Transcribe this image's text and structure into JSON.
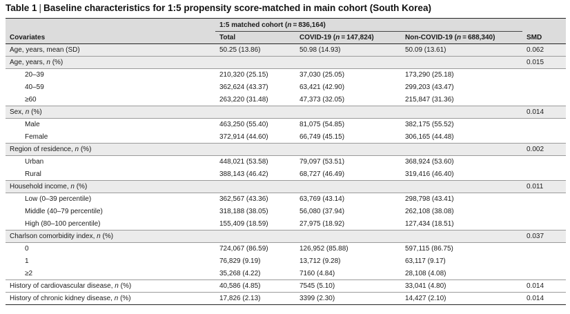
{
  "caption": {
    "label": "Table 1",
    "separator": "|",
    "text": "Baseline characteristics for 1:5 propensity score-matched in main cohort (South Korea)"
  },
  "spanner": {
    "prefix": "1:5 matched cohort (",
    "n_symbol": "n",
    "suffix": " = 836,164)"
  },
  "headers": {
    "covariates": "Covariates",
    "total": "Total",
    "covid_prefix": "COVID-19 (",
    "covid_n": "n",
    "covid_suffix": " = 147,824)",
    "noncovid_prefix": "Non-COVID-19 (",
    "noncovid_n": "n",
    "noncovid_suffix": " = 688,340)",
    "smd": "SMD"
  },
  "rows": {
    "age_mean": {
      "label": "Age, years, mean (SD)",
      "total": "50.25 (13.86)",
      "covid": "50.98 (14.93)",
      "noncovid": "50.09 (13.61)",
      "smd": "0.062"
    },
    "age_group": {
      "label_pre": "Age, years, ",
      "label_n": "n",
      "label_post": " (%)",
      "smd": "0.015"
    },
    "age_20_39": {
      "label": "20–39",
      "total": "210,320 (25.15)",
      "covid": "37,030 (25.05)",
      "noncovid": "173,290 (25.18)"
    },
    "age_40_59": {
      "label": "40–59",
      "total": "362,624 (43.37)",
      "covid": "63,421 (42.90)",
      "noncovid": "299,203 (43.47)"
    },
    "age_60": {
      "label": "≥60",
      "total": "263,220 (31.48)",
      "covid": "47,373 (32.05)",
      "noncovid": "215,847 (31.36)"
    },
    "sex": {
      "label_pre": "Sex, ",
      "label_n": "n",
      "label_post": " (%)",
      "smd": "0.014"
    },
    "male": {
      "label": "Male",
      "total": "463,250 (55.40)",
      "covid": "81,075 (54.85)",
      "noncovid": "382,175 (55.52)"
    },
    "female": {
      "label": "Female",
      "total": "372,914 (44.60)",
      "covid": "66,749 (45.15)",
      "noncovid": "306,165 (44.48)"
    },
    "region": {
      "label_pre": "Region of residence, ",
      "label_n": "n",
      "label_post": " (%)",
      "smd": "0.002"
    },
    "urban": {
      "label": "Urban",
      "total": "448,021 (53.58)",
      "covid": "79,097 (53.51)",
      "noncovid": "368,924 (53.60)"
    },
    "rural": {
      "label": "Rural",
      "total": "388,143 (46.42)",
      "covid": "68,727 (46.49)",
      "noncovid": "319,416 (46.40)"
    },
    "income": {
      "label_pre": "Household income, ",
      "label_n": "n",
      "label_post": " (%)",
      "smd": "0.011"
    },
    "low": {
      "label": "Low (0–39 percentile)",
      "total": "362,567 (43.36)",
      "covid": "63,769 (43.14)",
      "noncovid": "298,798 (43.41)"
    },
    "middle": {
      "label": "Middle (40–79 percentile)",
      "total": "318,188 (38.05)",
      "covid": "56,080 (37.94)",
      "noncovid": "262,108 (38.08)"
    },
    "high": {
      "label": "High (80–100 percentile)",
      "total": "155,409 (18.59)",
      "covid": "27,975 (18.92)",
      "noncovid": "127,434 (18.51)"
    },
    "cci": {
      "label_pre": "Charlson comorbidity index, ",
      "label_n": "n",
      "label_post": " (%)",
      "smd": "0.037"
    },
    "cci_0": {
      "label": "0",
      "total": "724,067 (86.59)",
      "covid": "126,952 (85.88)",
      "noncovid": "597,115 (86.75)"
    },
    "cci_1": {
      "label": "1",
      "total": "76,829 (9.19)",
      "covid": "13,712 (9.28)",
      "noncovid": "63,117 (9.17)"
    },
    "cci_2": {
      "label": "≥2",
      "total": "35,268 (4.22)",
      "covid": "7160 (4.84)",
      "noncovid": "28,108 (4.08)"
    },
    "cvd": {
      "label_pre": "History of cardiovascular disease, ",
      "label_n": "n",
      "label_post": " (%)",
      "total": "40,586 (4.85)",
      "covid": "7545 (5.10)",
      "noncovid": "33,041 (4.80)",
      "smd": "0.014"
    },
    "ckd": {
      "label_pre": "History of chronic kidney disease, ",
      "label_n": "n",
      "label_post": " (%)",
      "total": "17,826 (2.13)",
      "covid": "3399 (2.30)",
      "noncovid": "14,427 (2.10)",
      "smd": "0.014"
    }
  }
}
